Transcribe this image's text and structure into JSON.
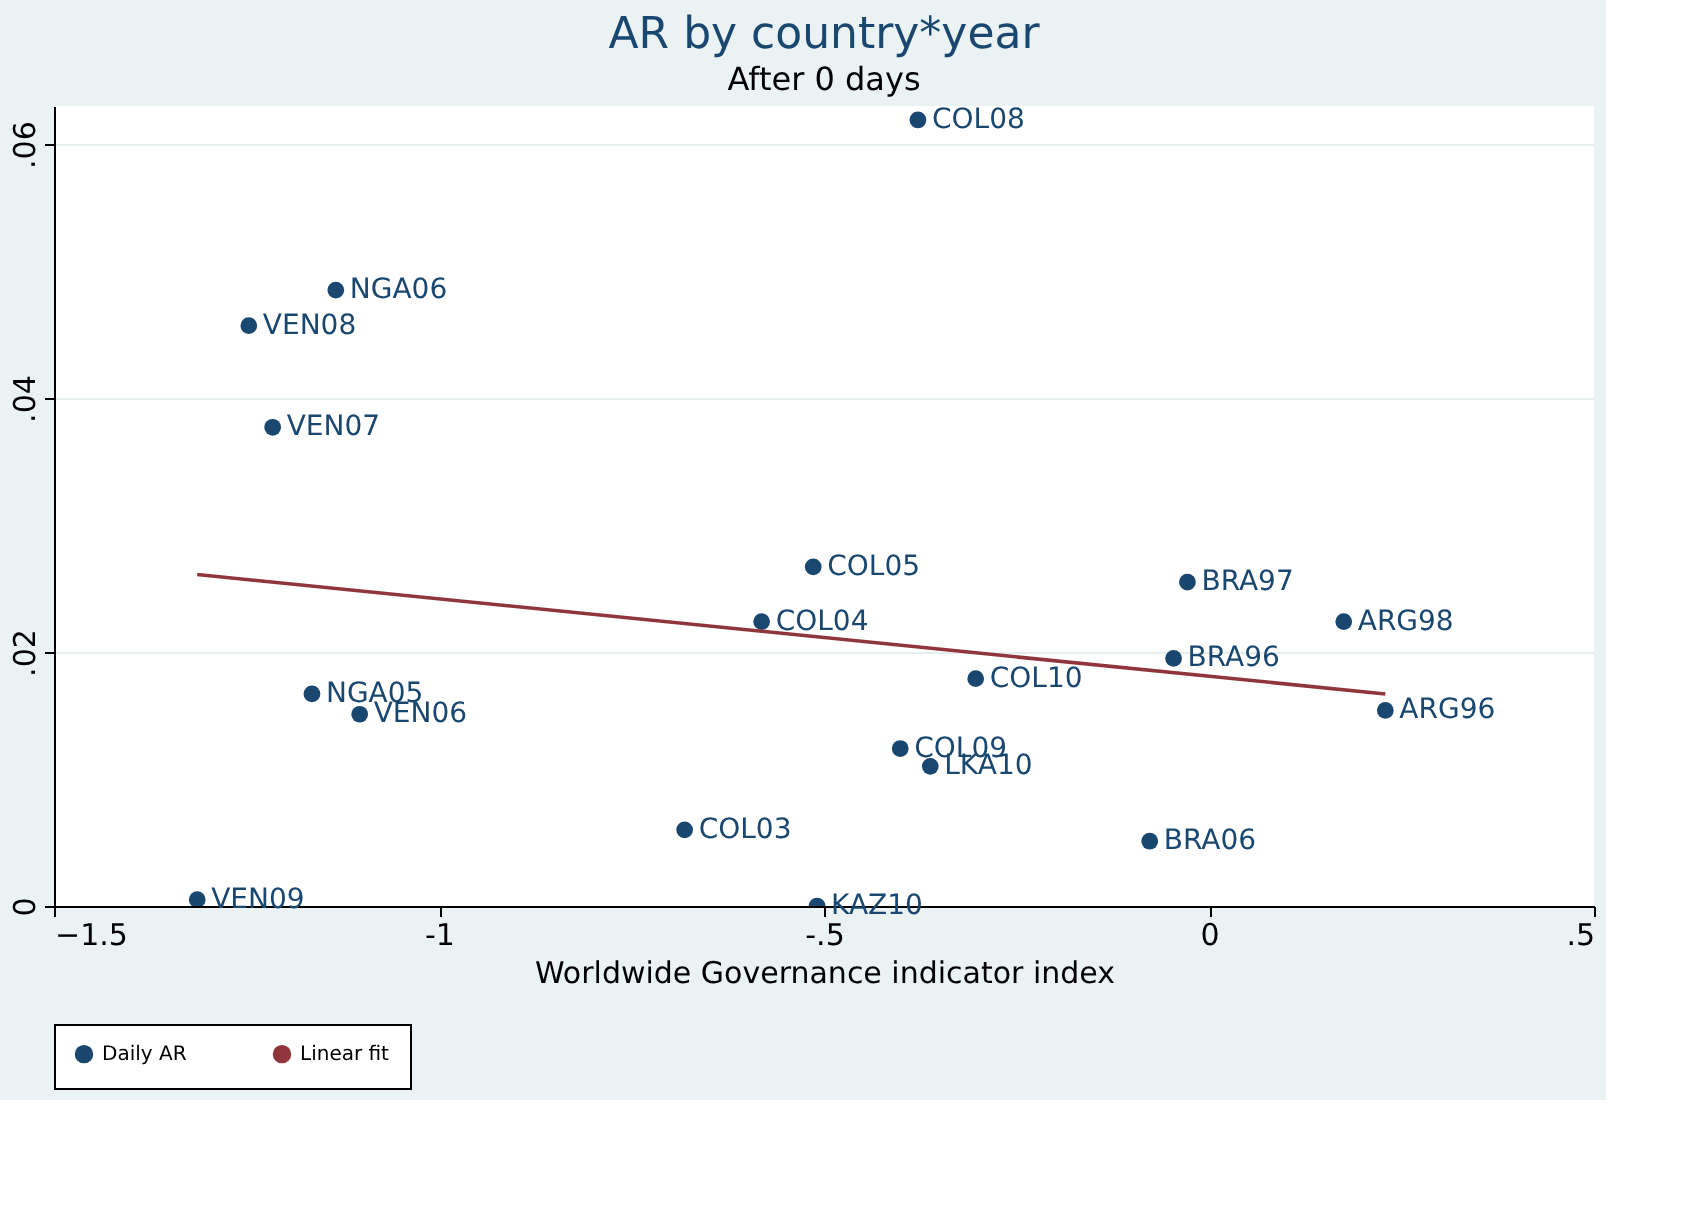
{
  "chart_data": {
    "type": "scatter",
    "title": "AR by country*year",
    "subtitle": "After 0 days",
    "xlabel": "Worldwide Governance indicator index",
    "xlim": [
      -1.5,
      0.5
    ],
    "xticks": [
      -1.5,
      {
        "value": -1,
        "label": "-1"
      },
      {
        "value": -0.5,
        "label": "-.5"
      },
      {
        "value": 0,
        "label": "0"
      },
      {
        "value": 0.5,
        "label": ".5"
      }
    ],
    "ylim": [
      0,
      0.063
    ],
    "yticks": [
      {
        "value": 0,
        "label": "0"
      },
      {
        "value": 0.02,
        "label": ".02"
      },
      {
        "value": 0.04,
        "label": ".04"
      },
      {
        "value": 0.06,
        "label": ".06"
      }
    ],
    "grid": "y",
    "legend": "bottom",
    "series": [
      {
        "name": "Daily AR",
        "marker": "circle",
        "color": "#1a476f",
        "x": [
          -0.378,
          -1.134,
          -1.247,
          -1.216,
          -0.514,
          -0.581,
          -0.028,
          0.175,
          -0.046,
          -0.303,
          0.229,
          -1.165,
          -1.103,
          -0.401,
          -0.362,
          -0.681,
          -0.077,
          -1.314,
          -0.509
        ],
        "values": [
          0.0619,
          0.0485,
          0.0457,
          0.0377,
          0.0267,
          0.0224,
          0.0255,
          0.0224,
          0.0195,
          0.0179,
          0.0154,
          0.0167,
          0.0151,
          0.0124,
          0.011,
          0.006,
          0.0051,
          0.0005,
          0.0
        ],
        "value_labels": [
          "COL08",
          "NGA06",
          "VEN08",
          "VEN07",
          "COL05",
          "COL04",
          "BRA97",
          "ARG98",
          "BRA96",
          "COL10",
          "ARG96",
          "NGA05",
          "VEN06",
          "COL09",
          "LKA10",
          "COL03",
          "BRA06",
          "VEN09",
          "KAZ10"
        ]
      },
      {
        "name": "Linear fit",
        "type": "line",
        "color": "#90353b",
        "x": [
          -1.314,
          0.229
        ],
        "values": [
          0.0261,
          0.0167
        ]
      }
    ]
  }
}
